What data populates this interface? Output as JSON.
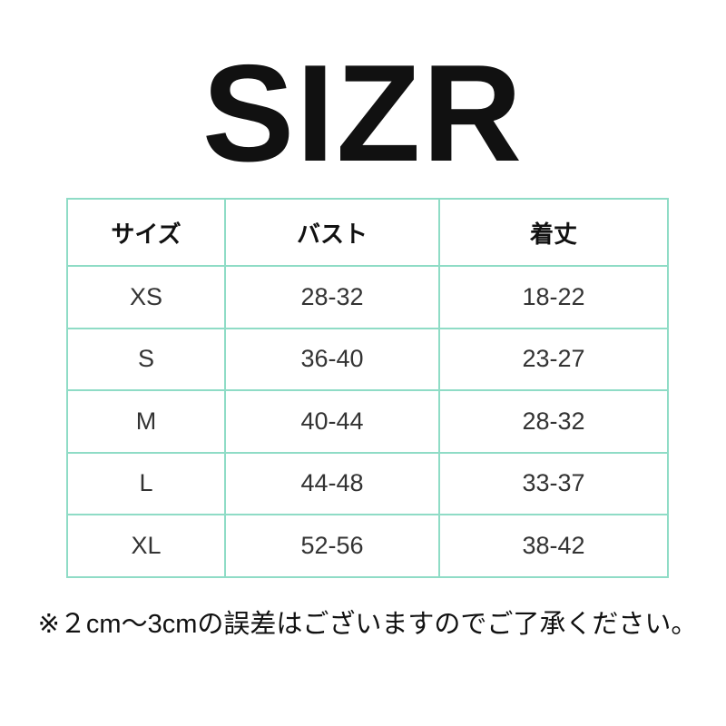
{
  "title": "SIZR",
  "table": {
    "headers": [
      "サイズ",
      "バスト",
      "着丈"
    ],
    "rows": [
      [
        "XS",
        "28-32",
        "18-22"
      ],
      [
        "S",
        "36-40",
        "23-27"
      ],
      [
        "M",
        "40-44",
        "28-32"
      ],
      [
        "L",
        "44-48",
        "33-37"
      ],
      [
        "XL",
        "52-56",
        "38-42"
      ]
    ]
  },
  "note": "※２cm～3cmの誤差はございますのでご了承ください。",
  "colors": {
    "grid": "#8fdcc6",
    "text": "#333333"
  }
}
